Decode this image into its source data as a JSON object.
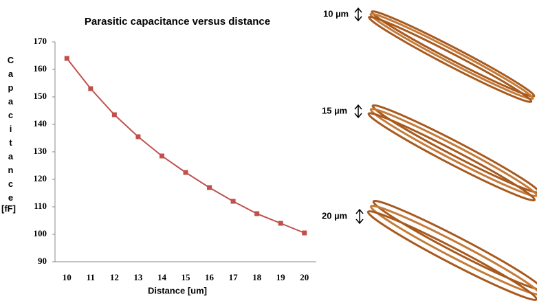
{
  "chart_data": {
    "type": "line",
    "title": "Parasitic capacitance versus distance",
    "x_label": "Distance [um]",
    "y_label": "Capacitance",
    "y_label_unit": "[fF]",
    "x": [
      10,
      11,
      12,
      13,
      14,
      15,
      16,
      17,
      18,
      19,
      20
    ],
    "series": [
      {
        "name": "Capacitance",
        "color": "#c0504d",
        "values": [
          164,
          153,
          143.5,
          135.5,
          128.5,
          122.5,
          117,
          112,
          107.5,
          104,
          100.5
        ]
      }
    ],
    "xlim": [
      9.5,
      20.5
    ],
    "xticks": [
      10,
      11,
      12,
      13,
      14,
      15,
      16,
      17,
      18,
      19,
      20
    ],
    "ylim": [
      90,
      170
    ],
    "yticks": [
      90,
      100,
      110,
      120,
      130,
      140,
      150,
      160,
      170
    ],
    "grid": false,
    "annotations": [
      "10 µm",
      "15 µm",
      "20 µm"
    ]
  }
}
